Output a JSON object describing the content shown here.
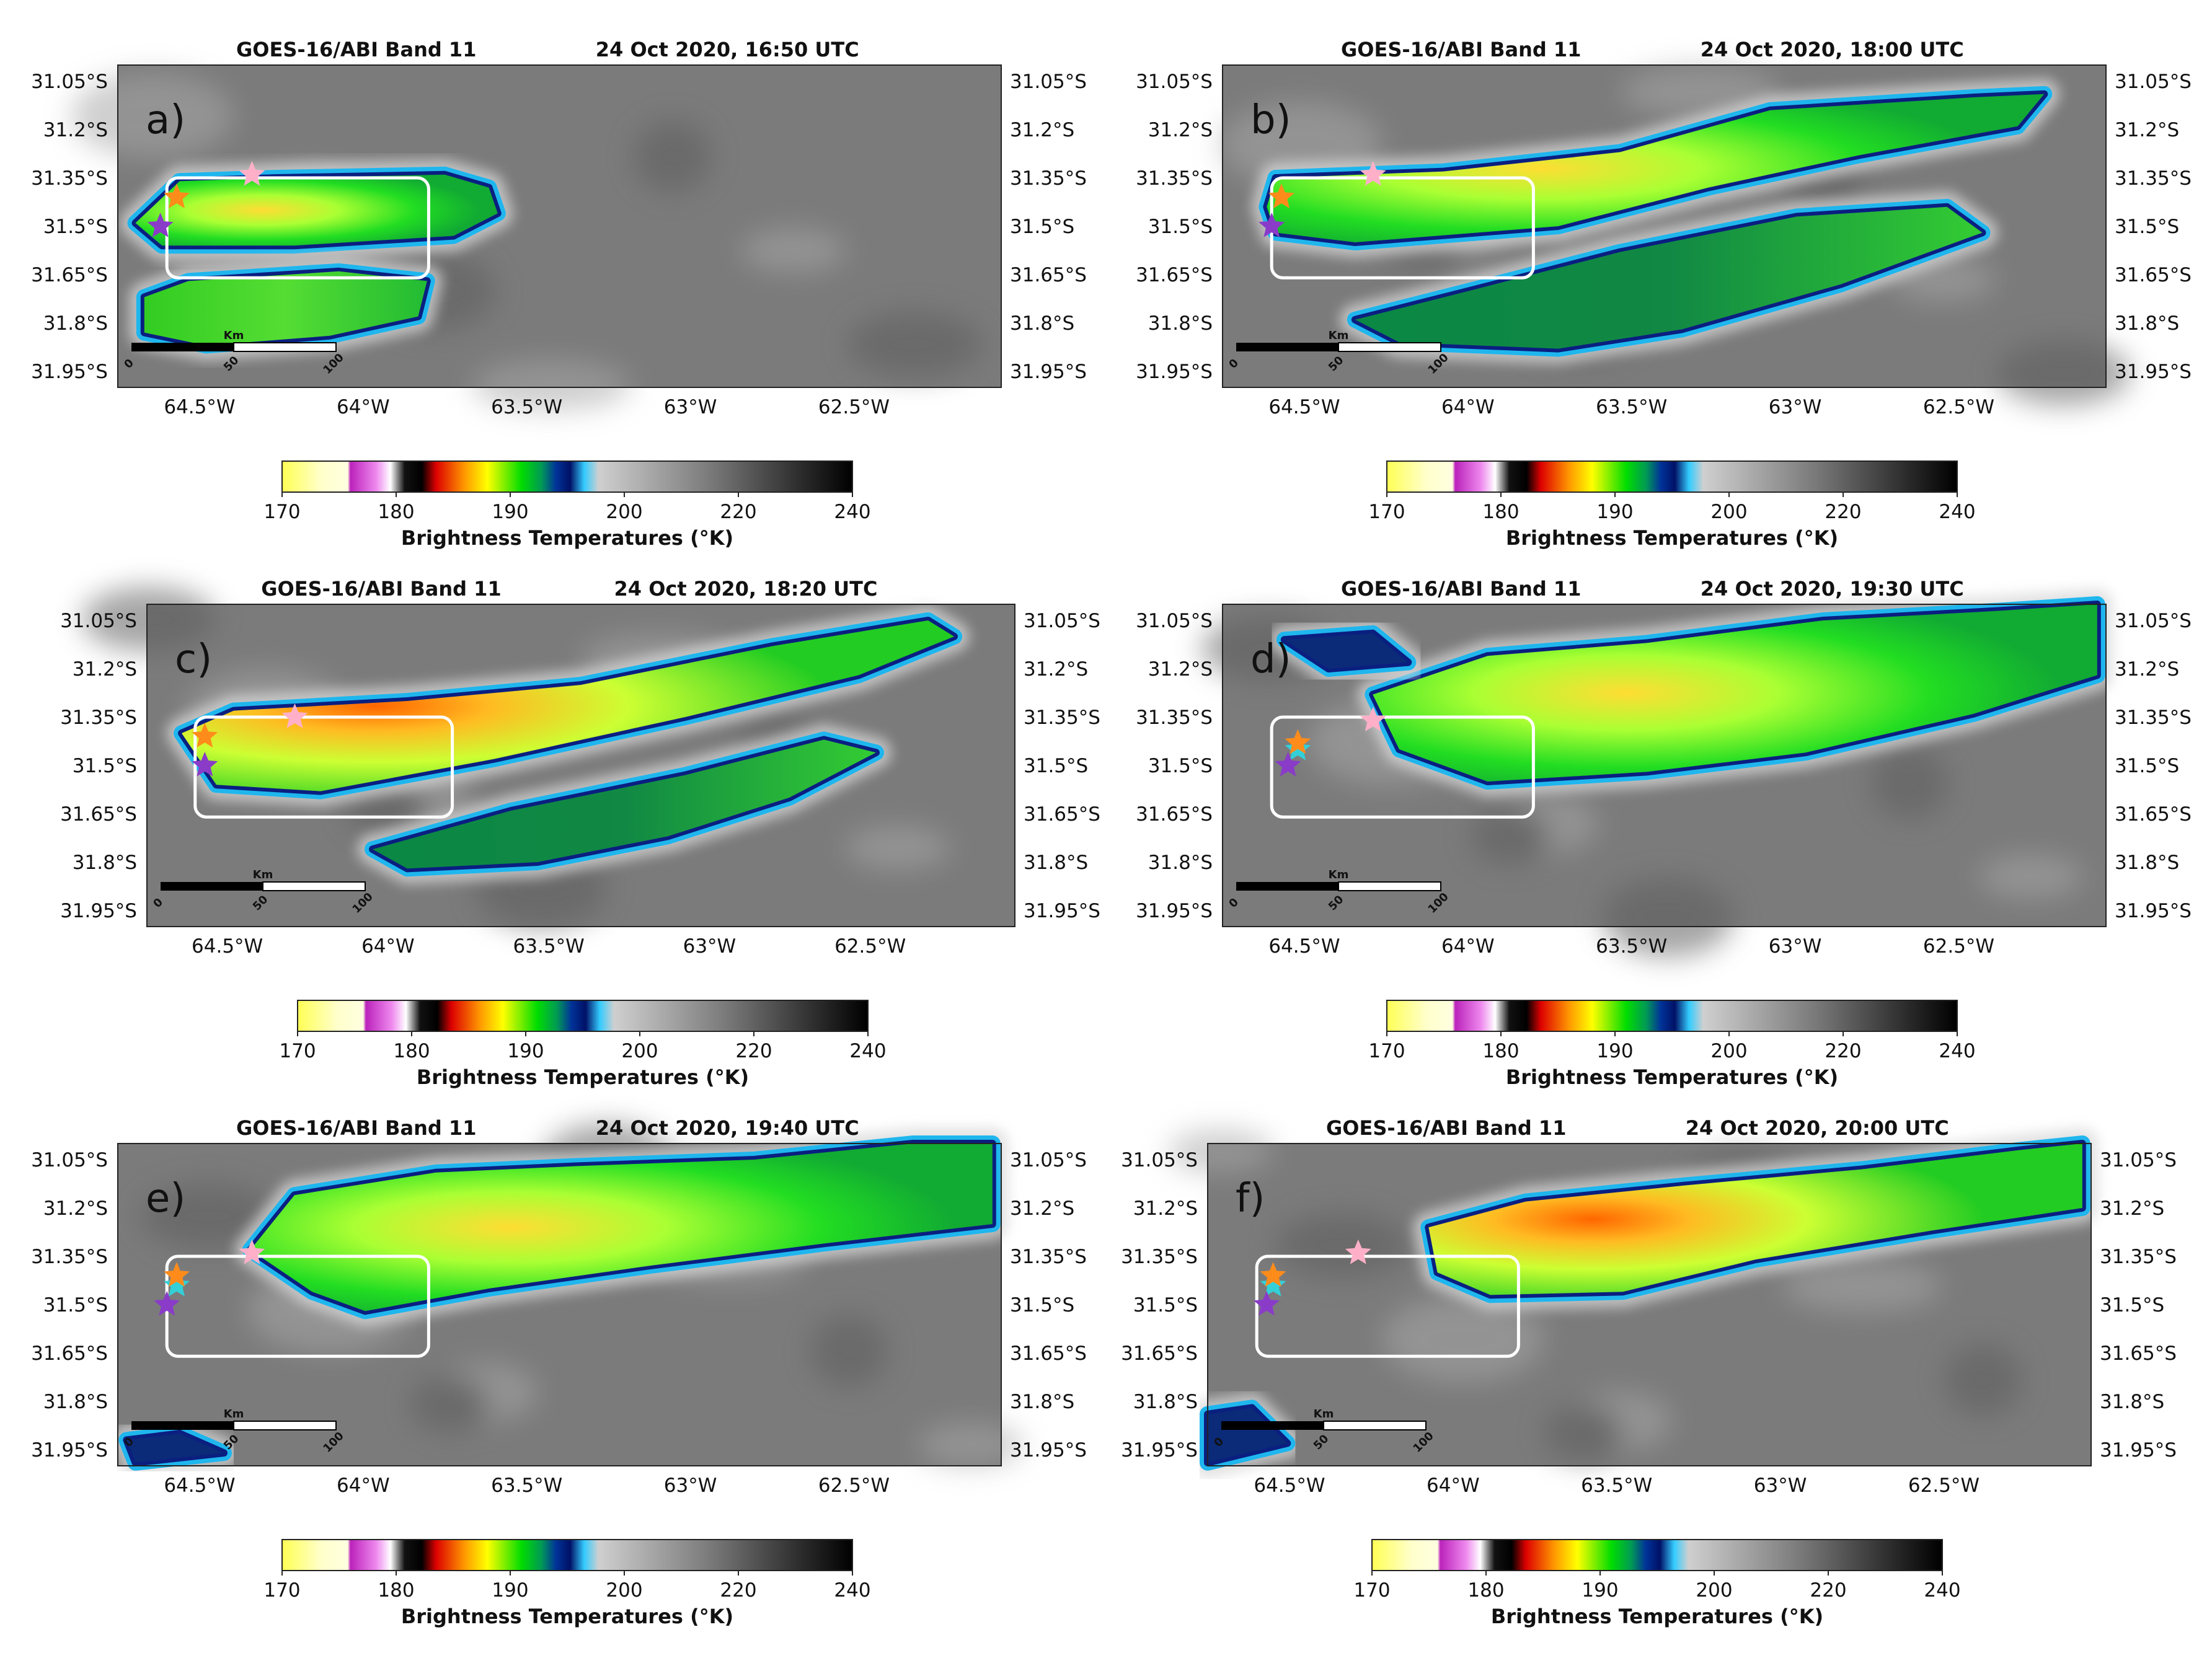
{
  "figure": {
    "panels": [
      {
        "label": "a)",
        "title_left": "GOES-16/ABI Band 11",
        "title_right": "24 Oct 2020,  16:50 UTC"
      },
      {
        "label": "b)",
        "title_left": "GOES-16/ABI Band 11",
        "title_right": "24 Oct 2020,  18:00 UTC"
      },
      {
        "label": "c)",
        "title_left": "GOES-16/ABI Band 11",
        "title_right": "24 Oct 2020,  18:20 UTC"
      },
      {
        "label": "d)",
        "title_left": "GOES-16/ABI Band 11",
        "title_right": "24 Oct 2020,  19:30 UTC"
      },
      {
        "label": "e)",
        "title_left": "GOES-16/ABI Band 11",
        "title_right": "24 Oct 2020,  19:40 UTC"
      },
      {
        "label": "f)",
        "title_left": "GOES-16/ABI Band 11",
        "title_right": "24 Oct 2020,  20:00 UTC"
      }
    ],
    "lat_ticks": [
      "31.05°S",
      "31.2°S",
      "31.35°S",
      "31.5°S",
      "31.65°S",
      "31.8°S",
      "31.95°S"
    ],
    "lon_ticks": [
      "64.5°W",
      "64°W",
      "63.5°W",
      "63°W",
      "62.5°W"
    ],
    "scalebar": {
      "unit": "Km",
      "ticks": [
        "0",
        "50",
        "100"
      ]
    },
    "colorbar": {
      "label": "Brightness Temperatures (°K)",
      "ticks": [
        "170",
        "180",
        "190",
        "200",
        "220",
        "240"
      ],
      "colors": [
        "#ffff66",
        "#ffffe8",
        "#cc33cc",
        "#ffffff",
        "#000000",
        "#ff0000",
        "#ffff00",
        "#00dd00",
        "#002288",
        "#33ccff",
        "#cfcfcf",
        "#000000"
      ]
    }
  }
}
